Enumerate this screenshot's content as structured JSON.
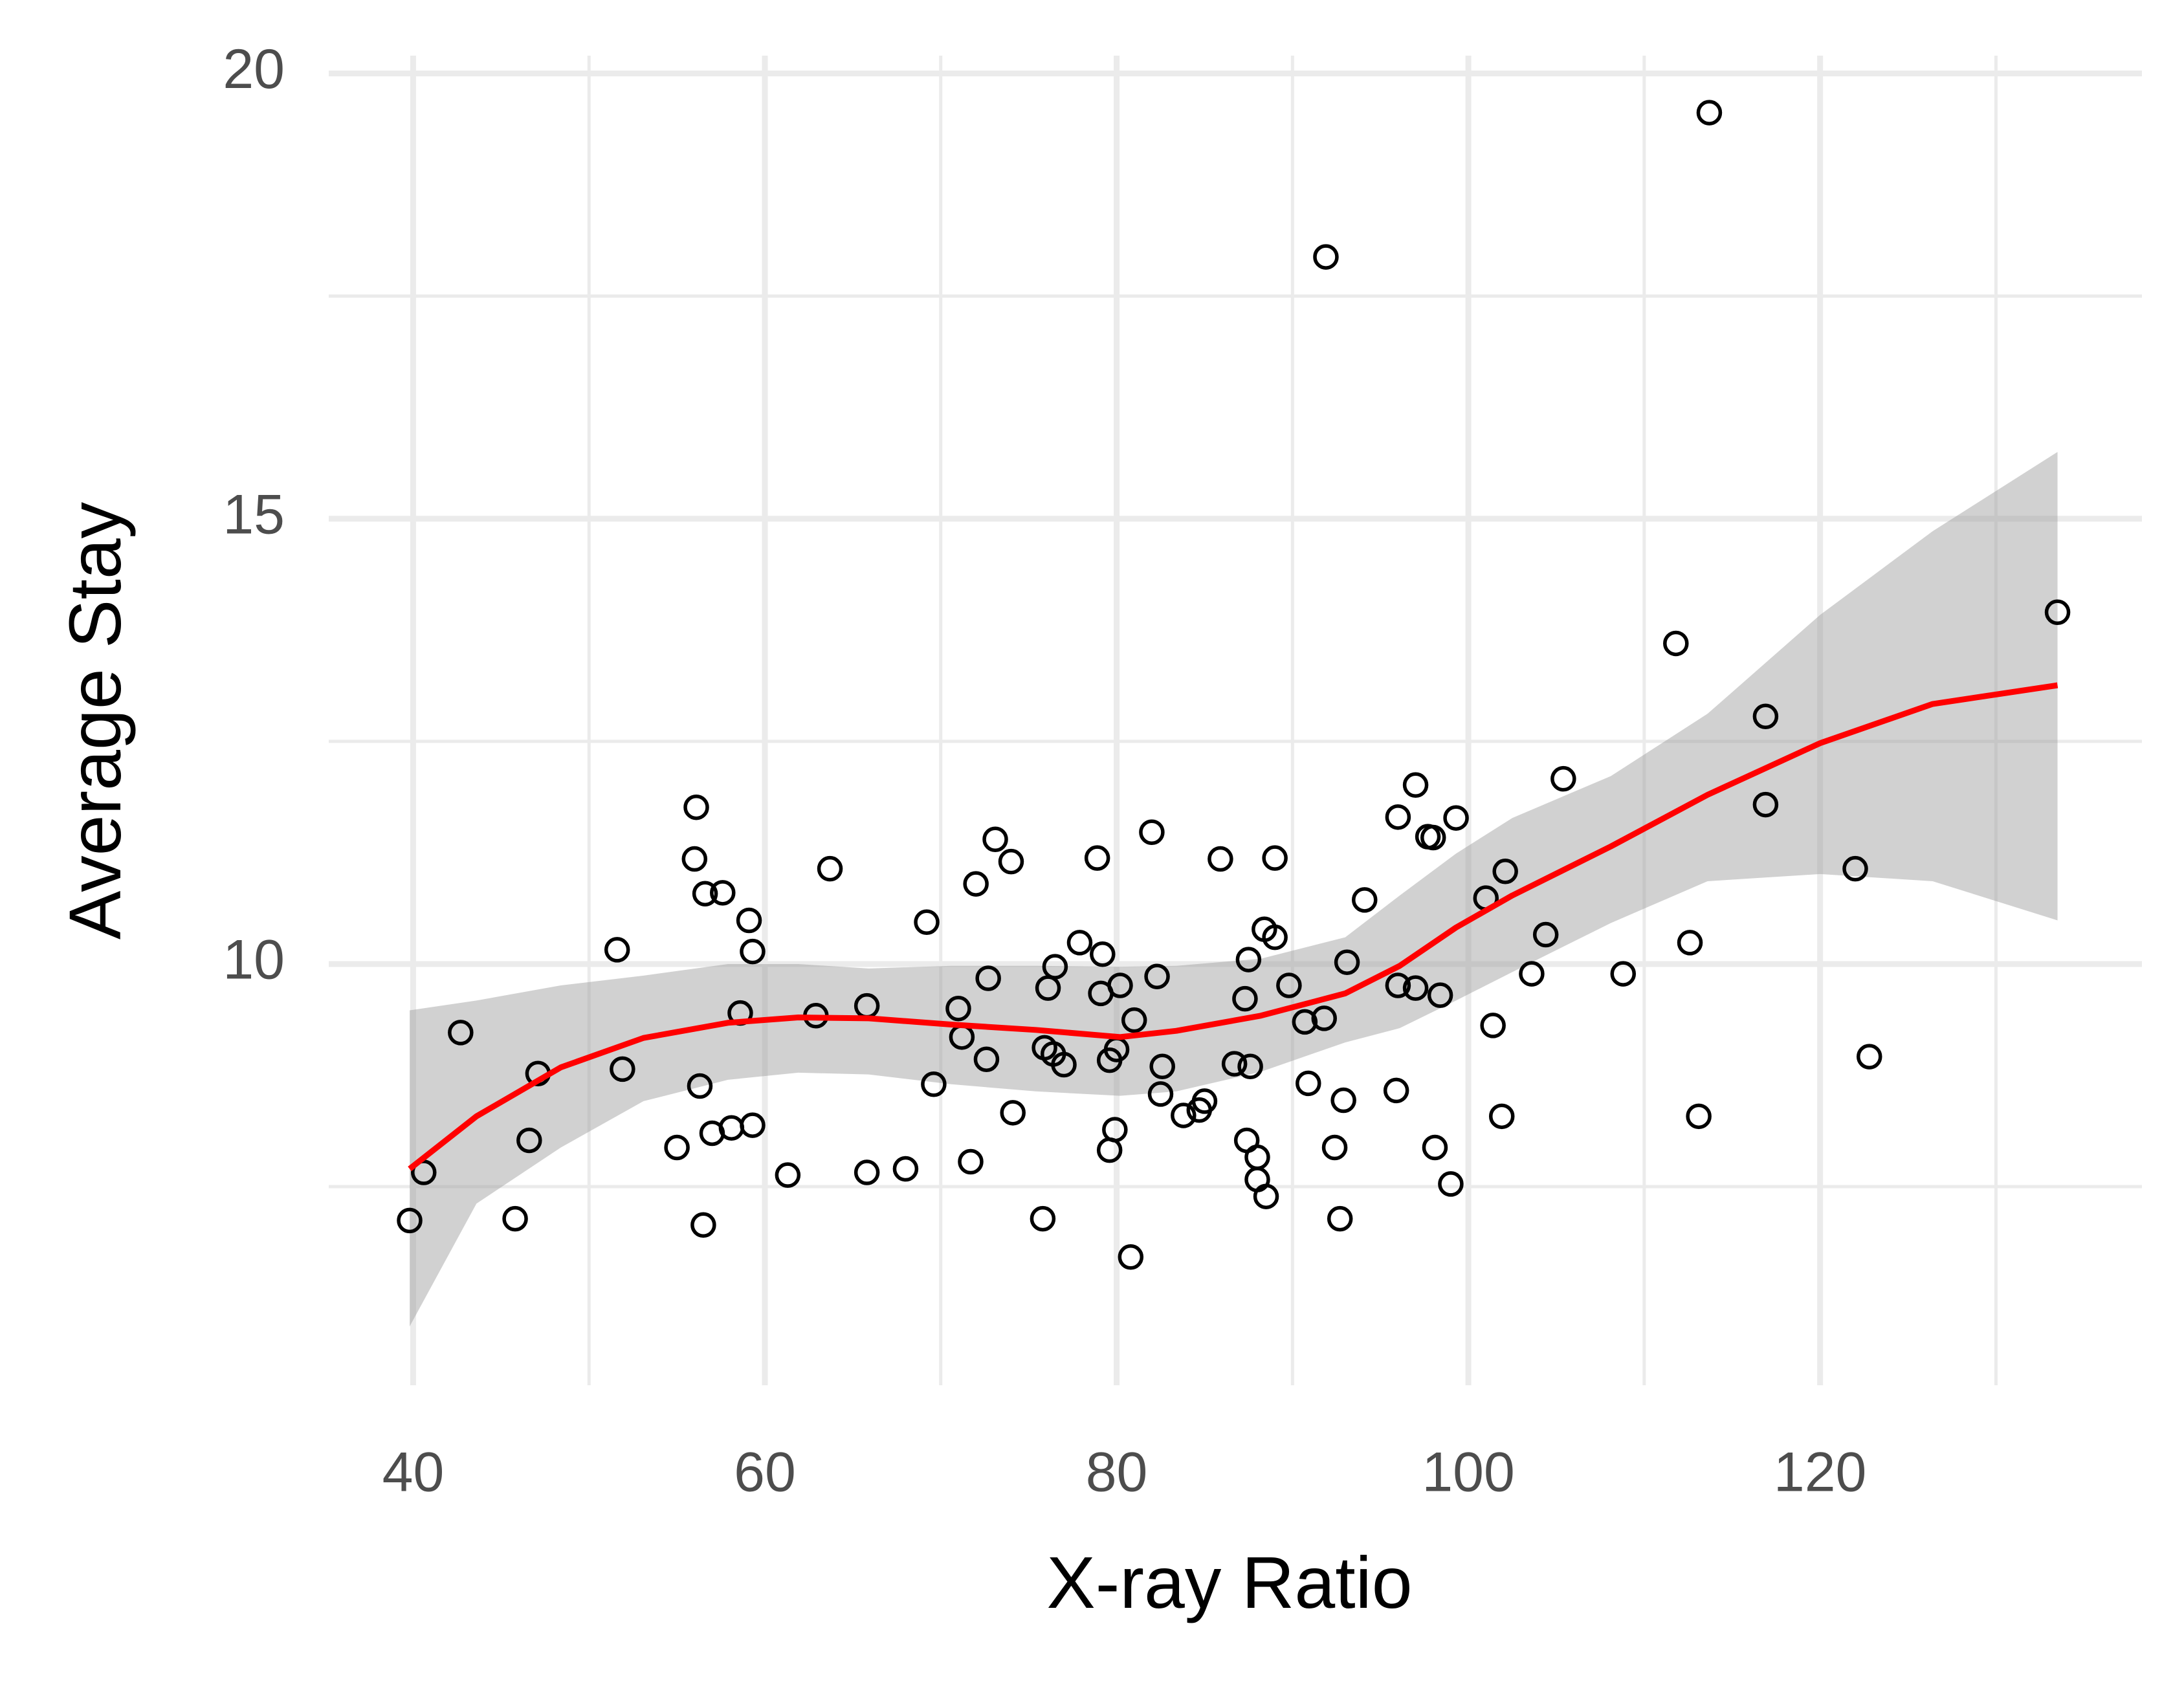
{
  "chart_data": {
    "type": "scatter",
    "x_label": "X-ray Ratio",
    "y_label": "Average Stay",
    "xlim": [
      35.2,
      138.3
    ],
    "ylim": [
      5.27,
      20.2
    ],
    "xticks": [
      40,
      60,
      80,
      100,
      120
    ],
    "yticks": [
      10,
      15,
      20
    ],
    "xminor": [
      50,
      70,
      90,
      110,
      130
    ],
    "yminor": [
      7.5,
      12.5,
      17.5
    ],
    "grid": true,
    "series": [
      {
        "type": "scatter",
        "color": "#000000",
        "x": [
          39.8,
          40.6,
          42.7,
          45.8,
          46.6,
          47.1,
          51.6,
          51.9,
          55.0,
          56.1,
          56.0,
          56.3,
          56.5,
          56.6,
          57.0,
          57.6,
          58.1,
          58.6,
          59.1,
          59.3,
          59.3,
          61.3,
          62.9,
          63.7,
          65.8,
          65.8,
          68.0,
          69.2,
          69.6,
          71.0,
          71.2,
          71.7,
          72.0,
          72.6,
          72.7,
          73.1,
          74.0,
          74.1,
          75.8,
          76.1,
          75.9,
          76.4,
          76.5,
          77.0,
          77.9,
          78.9,
          79.1,
          79.2,
          79.6,
          79.6,
          80.0,
          79.9,
          80.2,
          80.8,
          81.0,
          82.0,
          82.3,
          82.6,
          82.5,
          83.8,
          84.7,
          85.0,
          85.9,
          86.7,
          87.3,
          87.4,
          87.6,
          87.5,
          88.0,
          88.0,
          88.4,
          88.5,
          89.0,
          89.0,
          89.8,
          90.7,
          90.9,
          91.8,
          91.9,
          92.4,
          92.7,
          92.9,
          93.1,
          94.1,
          95.9,
          96.0,
          96.0,
          97.0,
          97.0,
          97.7,
          98.0,
          98.1,
          98.4,
          99.0,
          99.3,
          101.0,
          101.4,
          101.9,
          102.1,
          103.6,
          104.4,
          105.4,
          108.8,
          111.8,
          112.6,
          113.1,
          113.7,
          116.9,
          116.9,
          122.0,
          122.8,
          133.5
        ],
        "values": [
          7.12,
          7.66,
          9.23,
          7.14,
          8.02,
          8.77,
          10.16,
          8.82,
          7.94,
          11.76,
          11.18,
          8.63,
          7.07,
          10.79,
          8.1,
          10.8,
          8.16,
          9.45,
          10.49,
          10.14,
          8.19,
          7.63,
          9.42,
          11.07,
          9.53,
          7.66,
          7.7,
          10.47,
          8.65,
          9.5,
          9.18,
          7.78,
          10.9,
          8.93,
          9.84,
          11.4,
          11.15,
          8.33,
          7.14,
          9.73,
          9.06,
          8.99,
          9.97,
          8.87,
          10.24,
          11.19,
          9.67,
          10.11,
          8.92,
          7.91,
          9.04,
          8.14,
          9.76,
          6.71,
          9.37,
          11.48,
          9.86,
          8.85,
          8.54,
          8.3,
          8.36,
          8.46,
          11.18,
          8.88,
          9.61,
          8.02,
          8.85,
          10.05,
          7.83,
          7.58,
          10.39,
          7.39,
          11.19,
          10.3,
          9.76,
          9.35,
          8.66,
          9.39,
          17.94,
          7.94,
          7.14,
          8.47,
          10.02,
          10.72,
          8.58,
          11.65,
          9.76,
          12.01,
          9.73,
          11.43,
          11.42,
          7.94,
          9.65,
          7.53,
          11.64,
          10.74,
          9.31,
          8.29,
          11.04,
          9.89,
          10.33,
          12.08,
          9.89,
          13.6,
          10.24,
          8.29,
          19.56,
          12.78,
          11.79,
          11.07,
          8.96,
          13.95
        ]
      },
      {
        "type": "area",
        "color": "#999999",
        "x": [
          39.8,
          43.6,
          48.4,
          53.1,
          57.9,
          61.9,
          65.9,
          70.6,
          75.4,
          80.2,
          83.4,
          88.2,
          93.0,
          96.1,
          99.3,
          102.5,
          108.1,
          113.6,
          120.0,
          126.4,
          133.5
        ],
        "upper": [
          9.48,
          9.59,
          9.76,
          9.87,
          10.0,
          10.0,
          9.95,
          9.98,
          9.98,
          9.97,
          9.98,
          10.06,
          10.3,
          10.77,
          11.24,
          11.64,
          12.11,
          12.81,
          13.92,
          14.86,
          15.75
        ],
        "lower": [
          5.93,
          7.31,
          7.94,
          8.46,
          8.7,
          8.78,
          8.76,
          8.65,
          8.57,
          8.52,
          8.57,
          8.79,
          9.12,
          9.28,
          9.59,
          9.91,
          10.46,
          10.93,
          11.01,
          10.93,
          10.49
        ]
      },
      {
        "type": "line",
        "color": "#ff0000",
        "x": [
          39.8,
          43.6,
          48.4,
          53.1,
          57.9,
          61.9,
          65.9,
          70.6,
          75.4,
          80.2,
          83.4,
          88.2,
          93.0,
          96.1,
          99.3,
          102.5,
          108.1,
          113.6,
          120.0,
          126.4,
          133.5
        ],
        "values": [
          7.7,
          8.29,
          8.84,
          9.17,
          9.34,
          9.4,
          9.39,
          9.32,
          9.26,
          9.18,
          9.25,
          9.42,
          9.67,
          9.98,
          10.41,
          10.77,
          11.32,
          11.9,
          12.48,
          12.92,
          13.13
        ]
      }
    ]
  }
}
